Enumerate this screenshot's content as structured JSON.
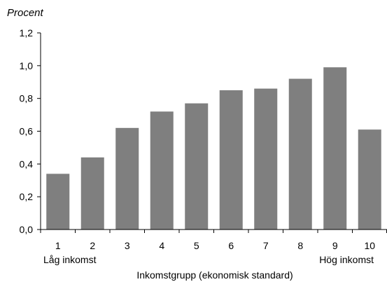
{
  "chart_data": {
    "type": "bar",
    "ylabel": "Procent",
    "xlabel": "Inkomstgrupp (ekonomisk standard)",
    "categories": [
      "1",
      "2",
      "3",
      "4",
      "5",
      "6",
      "7",
      "8",
      "9",
      "10"
    ],
    "category_sublabels": {
      "first": "Låg inkomst",
      "last": "Hög inkomst"
    },
    "values": [
      0.34,
      0.44,
      0.62,
      0.72,
      0.77,
      0.85,
      0.86,
      0.92,
      0.99,
      0.61
    ],
    "ylim": [
      0,
      1.2
    ],
    "yticks": [
      "0,0",
      "0,2",
      "0,4",
      "0,6",
      "0,8",
      "1,0",
      "1,2"
    ],
    "grid": false,
    "bar_color": "#7f7f7f"
  }
}
